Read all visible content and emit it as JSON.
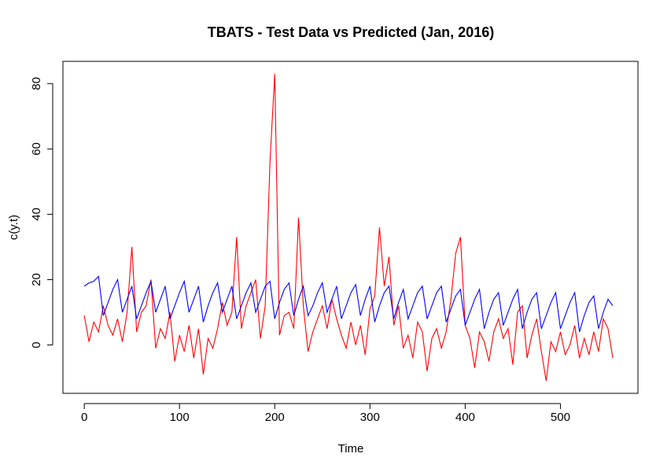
{
  "chart_data": {
    "type": "line",
    "title": "TBATS - Test Data vs Predicted (Jan, 2016)",
    "x_label": "Time",
    "y_label": "c(y.t)",
    "x": [
      0,
      5,
      10,
      15,
      20,
      25,
      30,
      35,
      40,
      45,
      50,
      55,
      60,
      65,
      70,
      75,
      80,
      85,
      90,
      95,
      100,
      105,
      110,
      115,
      120,
      125,
      130,
      135,
      140,
      145,
      150,
      155,
      160,
      165,
      170,
      175,
      180,
      185,
      190,
      195,
      200,
      205,
      210,
      215,
      220,
      225,
      230,
      235,
      240,
      245,
      250,
      255,
      260,
      265,
      270,
      275,
      280,
      285,
      290,
      295,
      300,
      305,
      310,
      315,
      320,
      325,
      330,
      335,
      340,
      345,
      350,
      355,
      360,
      365,
      370,
      375,
      380,
      385,
      390,
      395,
      400,
      405,
      410,
      415,
      420,
      425,
      430,
      435,
      440,
      445,
      450,
      455,
      460,
      465,
      470,
      475,
      480,
      485,
      490,
      495,
      500,
      505,
      510,
      515,
      520,
      525,
      530,
      535,
      540,
      545,
      550,
      555
    ],
    "series": [
      {
        "color": "#ff0000",
        "values": [
          9,
          1,
          7,
          4,
          12,
          6,
          3,
          8,
          1,
          10,
          30,
          4,
          10,
          12,
          20,
          -1,
          5,
          2,
          10,
          -5,
          3,
          -2,
          6,
          -4,
          5,
          -9,
          2,
          -1,
          5,
          13,
          6,
          10,
          33,
          5,
          12,
          16,
          20,
          2,
          12,
          56,
          83,
          3,
          9,
          10,
          5,
          39,
          12,
          -2,
          4,
          8,
          12,
          5,
          14,
          8,
          3,
          -1,
          7,
          0,
          6,
          -3,
          11,
          15,
          36,
          18,
          27,
          6,
          12,
          -1,
          3,
          -4,
          7,
          4,
          -8,
          2,
          5,
          -1,
          4,
          14,
          28,
          33,
          6,
          2,
          -7,
          4,
          1,
          -5,
          4,
          8,
          2,
          5,
          -6,
          10,
          12,
          -4,
          3,
          8,
          -2,
          -11,
          1,
          -2,
          4,
          -3,
          0,
          6,
          -4,
          2,
          -3,
          4,
          -2,
          8,
          5,
          -4
        ]
      },
      {
        "color": "#0000ff",
        "values": [
          18,
          19,
          19.5,
          21,
          9,
          13,
          17,
          20,
          10,
          14,
          18,
          8,
          12,
          16,
          19.5,
          10,
          14,
          18,
          8,
          12,
          16,
          19.5,
          10,
          14,
          18,
          7,
          12,
          16,
          19,
          10,
          14,
          18,
          8,
          12,
          16,
          19,
          10,
          14,
          18,
          19.5,
          8,
          13,
          17,
          19,
          9,
          14,
          18,
          9,
          12,
          16,
          19,
          10,
          14,
          18,
          8,
          12,
          16,
          18.5,
          9,
          14,
          18,
          7,
          12,
          16,
          18,
          8,
          13,
          17,
          8,
          12,
          16,
          18,
          8,
          12,
          16,
          18,
          7,
          11,
          15,
          17,
          6,
          10,
          14,
          17,
          5,
          10,
          14,
          16,
          6,
          10,
          14,
          17,
          5,
          10,
          14,
          16,
          5,
          9,
          13,
          16,
          5,
          9,
          13,
          16,
          4,
          9,
          13,
          15,
          5,
          10,
          14,
          12
        ]
      }
    ],
    "xlim": [
      -22.4,
      581.4
    ],
    "ylim": [
      -14.8,
      86.8
    ],
    "xticks": [
      0,
      100,
      200,
      300,
      400,
      500
    ],
    "yticks": [
      0,
      20,
      40,
      60,
      80
    ]
  }
}
